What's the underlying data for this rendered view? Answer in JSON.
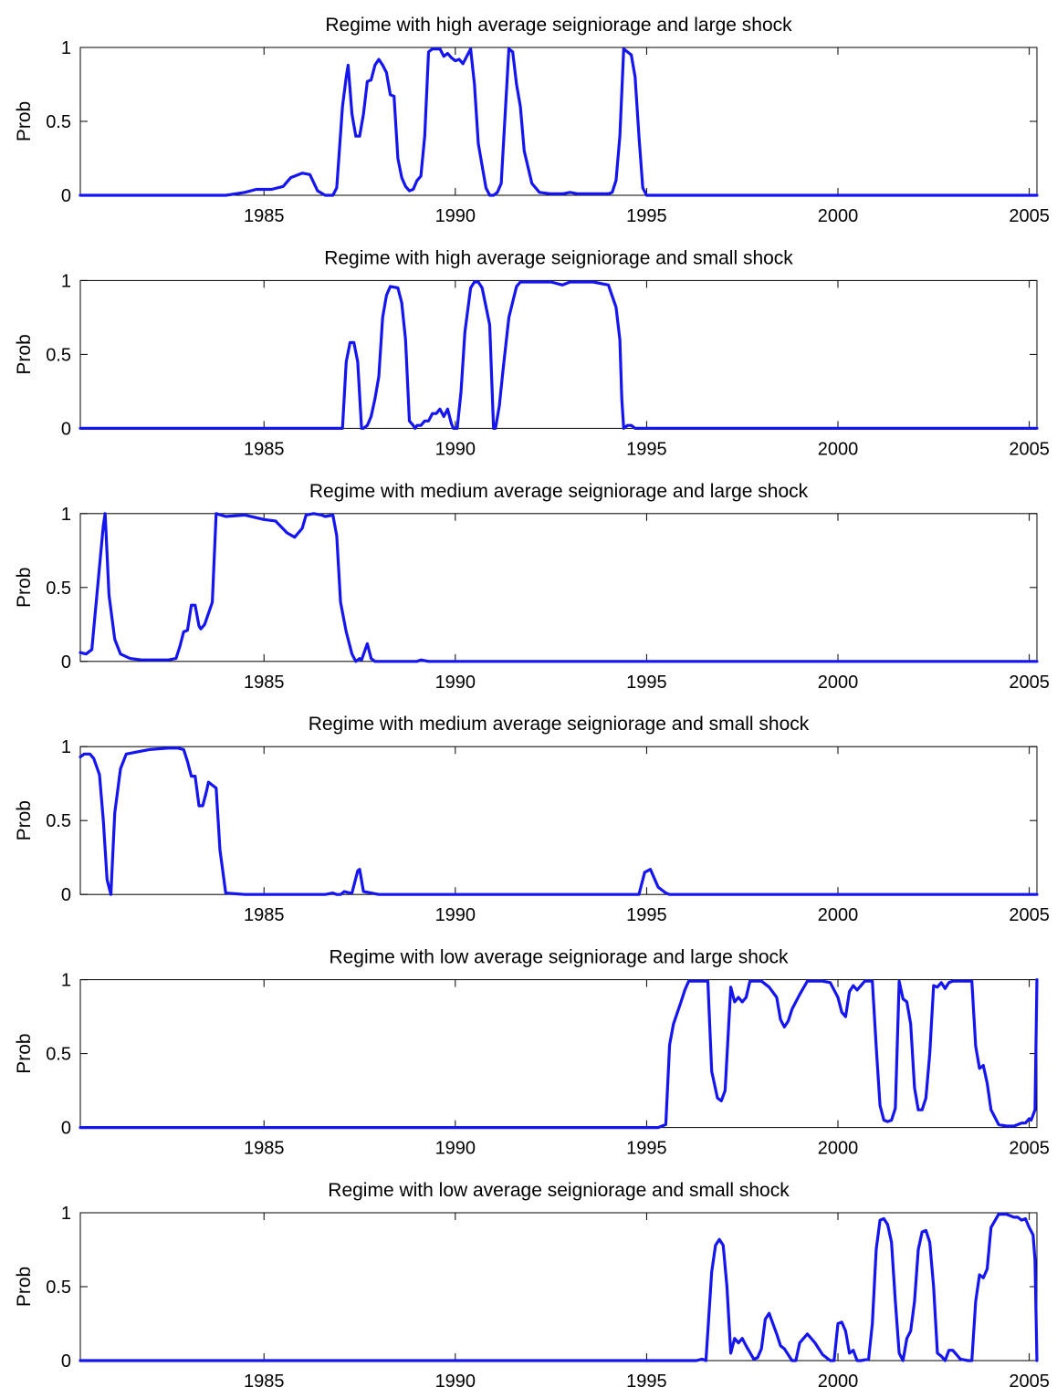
{
  "colors": {
    "line": "#1515f0",
    "axes": "#000000",
    "background": "#ffffff"
  },
  "chart_data": [
    {
      "type": "line",
      "title": "Regime with high average seigniorage and large shock",
      "xlabel": "",
      "ylabel": "Prob",
      "xlim": [
        1980.2,
        2005.2
      ],
      "ylim": [
        0,
        1
      ],
      "xticks": [
        1985,
        1990,
        1995,
        2000,
        2005
      ],
      "yticks": [
        {
          "v": 0,
          "label": "0"
        },
        {
          "v": 0.5,
          "label": "0.5"
        },
        {
          "v": 1,
          "label": "1"
        }
      ],
      "grid": false,
      "series": [
        {
          "x": [
            1980.2,
            1984,
            1984.5,
            1984.8,
            1985.2,
            1985.5,
            1985.7,
            1986,
            1986.2,
            1986.4,
            1986.6,
            1986.8,
            1986.9,
            1987.05,
            1987.15,
            1987.2,
            1987.3,
            1987.4,
            1987.5,
            1987.6,
            1987.7,
            1987.8,
            1987.9,
            1988.0,
            1988.1,
            1988.2,
            1988.3,
            1988.4,
            1988.5,
            1988.6,
            1988.7,
            1988.8,
            1988.9,
            1989.0,
            1989.1,
            1989.2,
            1989.3,
            1989.4,
            1989.5,
            1989.6,
            1989.7,
            1989.8,
            1989.9,
            1990.0,
            1990.1,
            1990.2,
            1990.3,
            1990.4,
            1990.5,
            1990.6,
            1990.7,
            1990.8,
            1990.9,
            1991.0,
            1991.1,
            1991.2,
            1991.4,
            1991.5,
            1991.6,
            1991.7,
            1991.8,
            1992.0,
            1992.2,
            1992.5,
            1992.8,
            1993.0,
            1993.2,
            1993.5,
            1993.8,
            1994.0,
            1994.1,
            1994.2,
            1994.3,
            1994.4,
            1994.6,
            1994.7,
            1994.8,
            1994.9,
            1995.0,
            1995.2,
            2005.2
          ],
          "y": [
            0,
            0,
            0.02,
            0.04,
            0.04,
            0.06,
            0.12,
            0.15,
            0.14,
            0.03,
            0,
            0,
            0.05,
            0.6,
            0.8,
            0.88,
            0.55,
            0.4,
            0.4,
            0.55,
            0.77,
            0.78,
            0.88,
            0.92,
            0.88,
            0.83,
            0.68,
            0.67,
            0.25,
            0.12,
            0.06,
            0.03,
            0.04,
            0.1,
            0.13,
            0.4,
            0.97,
            0.99,
            0.99,
            0.99,
            0.94,
            0.96,
            0.93,
            0.91,
            0.92,
            0.89,
            0.94,
            0.99,
            0.75,
            0.35,
            0.2,
            0.05,
            0,
            0,
            0.02,
            0.08,
            0.99,
            0.97,
            0.75,
            0.6,
            0.3,
            0.08,
            0.02,
            0.01,
            0.01,
            0.02,
            0.01,
            0.01,
            0.01,
            0.01,
            0.02,
            0.1,
            0.4,
            0.99,
            0.95,
            0.8,
            0.4,
            0.05,
            0,
            0,
            0
          ]
        }
      ]
    },
    {
      "type": "line",
      "title": "Regime with high average seigniorage and small shock",
      "xlabel": "",
      "ylabel": "Prob",
      "xlim": [
        1980.2,
        2005.2
      ],
      "ylim": [
        0,
        1
      ],
      "xticks": [
        1985,
        1990,
        1995,
        2000,
        2005
      ],
      "yticks": [
        {
          "v": 0,
          "label": "0"
        },
        {
          "v": 0.5,
          "label": "0.5"
        },
        {
          "v": 1,
          "label": "1"
        }
      ],
      "grid": false,
      "series": [
        {
          "x": [
            1980.2,
            1987.0,
            1987.05,
            1987.15,
            1987.25,
            1987.35,
            1987.45,
            1987.55,
            1987.6,
            1987.7,
            1987.8,
            1987.9,
            1988.0,
            1988.1,
            1988.2,
            1988.3,
            1988.5,
            1988.6,
            1988.7,
            1988.8,
            1988.9,
            1988.95,
            1989.0,
            1989.1,
            1989.2,
            1989.3,
            1989.4,
            1989.5,
            1989.6,
            1989.7,
            1989.8,
            1989.9,
            1989.95,
            1990.05,
            1990.15,
            1990.25,
            1990.4,
            1990.5,
            1990.6,
            1990.7,
            1990.9,
            1991.0,
            1991.05,
            1991.15,
            1991.25,
            1991.4,
            1991.6,
            1991.7,
            1991.8,
            1992.0,
            1992.3,
            1992.5,
            1992.8,
            1993.0,
            1993.3,
            1993.6,
            1994.0,
            1994.2,
            1994.3,
            1994.35,
            1994.4,
            1994.5,
            1994.6,
            1994.7,
            1994.8,
            2005.2
          ],
          "y": [
            0,
            0,
            0,
            0.45,
            0.58,
            0.58,
            0.45,
            0,
            0,
            0.02,
            0.08,
            0.2,
            0.35,
            0.75,
            0.9,
            0.96,
            0.95,
            0.85,
            0.6,
            0.05,
            0.02,
            0,
            0.02,
            0.02,
            0.05,
            0.05,
            0.1,
            0.1,
            0.13,
            0.08,
            0.13,
            0.03,
            0,
            0,
            0.25,
            0.65,
            0.95,
            0.99,
            0.99,
            0.95,
            0.7,
            0,
            0,
            0.15,
            0.4,
            0.75,
            0.96,
            0.99,
            0.99,
            0.99,
            0.99,
            0.99,
            0.97,
            0.99,
            0.99,
            0.99,
            0.97,
            0.82,
            0.6,
            0.2,
            0,
            0.02,
            0.02,
            0,
            0,
            0
          ]
        }
      ]
    },
    {
      "type": "line",
      "title": "Regime with medium average seigniorage and large shock",
      "xlabel": "",
      "ylabel": "Prob",
      "xlim": [
        1980.2,
        2005.2
      ],
      "ylim": [
        0,
        1
      ],
      "xticks": [
        1985,
        1990,
        1995,
        2000,
        2005
      ],
      "yticks": [
        {
          "v": 0,
          "label": "0"
        },
        {
          "v": 0.5,
          "label": "0.5"
        },
        {
          "v": 1,
          "label": "1"
        }
      ],
      "grid": false,
      "series": [
        {
          "x": [
            1980.2,
            1980.35,
            1980.5,
            1980.65,
            1980.8,
            1980.85,
            1980.95,
            1981.1,
            1981.25,
            1981.5,
            1981.8,
            1982.2,
            1982.5,
            1982.7,
            1982.8,
            1982.9,
            1983.0,
            1983.1,
            1983.2,
            1983.3,
            1983.35,
            1983.45,
            1983.65,
            1983.75,
            1984.0,
            1984.5,
            1985.0,
            1985.3,
            1985.6,
            1985.8,
            1986.0,
            1986.1,
            1986.3,
            1986.5,
            1986.6,
            1986.8,
            1986.9,
            1987.0,
            1987.15,
            1987.3,
            1987.4,
            1987.5,
            1987.55,
            1987.7,
            1987.8,
            1987.9,
            1988.0,
            1988.5,
            1989.0,
            1989.1,
            1989.3,
            1989.5,
            2005.2
          ],
          "y": [
            0.06,
            0.05,
            0.08,
            0.5,
            0.92,
            1.0,
            0.45,
            0.15,
            0.05,
            0.02,
            0.01,
            0.01,
            0.01,
            0.02,
            0.1,
            0.2,
            0.21,
            0.38,
            0.38,
            0.24,
            0.22,
            0.25,
            0.4,
            1.0,
            0.98,
            0.99,
            0.96,
            0.95,
            0.87,
            0.84,
            0.9,
            0.99,
            1.0,
            0.99,
            0.98,
            0.99,
            0.85,
            0.4,
            0.2,
            0.05,
            0,
            0.02,
            0.01,
            0.12,
            0.02,
            0,
            0,
            0,
            0,
            0.01,
            0,
            0,
            0
          ]
        }
      ]
    },
    {
      "type": "line",
      "title": "Regime with medium average seigniorage and small shock",
      "xlabel": "",
      "ylabel": "Prob",
      "xlim": [
        1980.2,
        2005.2
      ],
      "ylim": [
        0,
        1
      ],
      "xticks": [
        1985,
        1990,
        1995,
        2000,
        2005
      ],
      "yticks": [
        {
          "v": 0,
          "label": "0"
        },
        {
          "v": 0.5,
          "label": "0.5"
        },
        {
          "v": 1,
          "label": "1"
        }
      ],
      "grid": false,
      "series": [
        {
          "x": [
            1980.2,
            1980.3,
            1980.45,
            1980.55,
            1980.7,
            1980.8,
            1980.9,
            1981.0,
            1981.1,
            1981.25,
            1981.4,
            1981.6,
            1982.0,
            1982.5,
            1982.75,
            1982.9,
            1983.0,
            1983.1,
            1983.2,
            1983.3,
            1983.4,
            1983.5,
            1983.55,
            1983.75,
            1983.85,
            1984.0,
            1984.5,
            1985.0,
            1985.2,
            1985.5,
            1986.0,
            1986.5,
            1986.6,
            1986.8,
            1986.9,
            1987.0,
            1987.1,
            1987.25,
            1987.3,
            1987.45,
            1987.5,
            1987.6,
            1988.0,
            1989.0,
            1990.0,
            1991.0,
            1992.0,
            1994.0,
            1994.5,
            1994.8,
            1994.95,
            1995.1,
            1995.3,
            1995.5,
            1995.6,
            2005.2
          ],
          "y": [
            0.93,
            0.95,
            0.95,
            0.92,
            0.81,
            0.5,
            0.1,
            0,
            0.55,
            0.85,
            0.95,
            0.96,
            0.98,
            0.99,
            0.99,
            0.98,
            0.9,
            0.8,
            0.8,
            0.6,
            0.6,
            0.7,
            0.76,
            0.72,
            0.3,
            0.01,
            0,
            0,
            0,
            0,
            0,
            0,
            0,
            0.01,
            0,
            0,
            0.02,
            0.01,
            0.01,
            0.16,
            0.17,
            0.02,
            0,
            0,
            0,
            0,
            0,
            0,
            0,
            0,
            0.15,
            0.17,
            0.05,
            0.01,
            0,
            0
          ]
        }
      ]
    },
    {
      "type": "line",
      "title": "Regime with low average seigniorage and large shock",
      "xlabel": "",
      "ylabel": "Prob",
      "xlim": [
        1980.2,
        2005.2
      ],
      "ylim": [
        0,
        1
      ],
      "xticks": [
        1985,
        1990,
        1995,
        2000,
        2005
      ],
      "yticks": [
        {
          "v": 0,
          "label": "0"
        },
        {
          "v": 0.5,
          "label": "0.5"
        },
        {
          "v": 1,
          "label": "1"
        }
      ],
      "grid": false,
      "series": [
        {
          "x": [
            1980.2,
            1995.3,
            1995.5,
            1995.6,
            1995.7,
            1995.9,
            1996.0,
            1996.1,
            1996.3,
            1996.5,
            1996.6,
            1996.7,
            1996.85,
            1996.95,
            1997.05,
            1997.2,
            1997.3,
            1997.4,
            1997.5,
            1997.6,
            1997.7,
            1997.8,
            1997.9,
            1998.0,
            1998.2,
            1998.4,
            1998.5,
            1998.6,
            1998.7,
            1998.8,
            1998.9,
            1999.0,
            1999.2,
            1999.4,
            1999.6,
            1999.8,
            2000.0,
            2000.1,
            2000.2,
            2000.3,
            2000.4,
            2000.5,
            2000.7,
            2000.8,
            2000.9,
            2001.0,
            2001.1,
            2001.2,
            2001.3,
            2001.4,
            2001.5,
            2001.6,
            2001.7,
            2001.8,
            2001.9,
            2002.0,
            2002.1,
            2002.2,
            2002.3,
            2002.4,
            2002.5,
            2002.6,
            2002.7,
            2002.8,
            2002.9,
            2003.0,
            2003.2,
            2003.4,
            2003.5,
            2003.6,
            2003.7,
            2003.8,
            2003.9,
            2004.0,
            2004.2,
            2004.4,
            2004.6,
            2004.8,
            2004.9,
            2005.0,
            2005.05,
            2005.15,
            2005.2
          ],
          "y": [
            0,
            0,
            0.02,
            0.56,
            0.7,
            0.85,
            0.93,
            0.99,
            0.99,
            0.99,
            0.99,
            0.38,
            0.2,
            0.18,
            0.25,
            0.95,
            0.85,
            0.88,
            0.85,
            0.88,
            0.99,
            0.99,
            0.99,
            0.99,
            0.95,
            0.88,
            0.73,
            0.68,
            0.72,
            0.8,
            0.85,
            0.9,
            0.99,
            0.99,
            0.99,
            0.98,
            0.88,
            0.78,
            0.75,
            0.92,
            0.96,
            0.93,
            0.99,
            0.99,
            0.99,
            0.55,
            0.15,
            0.05,
            0.04,
            0.05,
            0.13,
            0.99,
            0.87,
            0.85,
            0.7,
            0.27,
            0.12,
            0.12,
            0.2,
            0.5,
            0.96,
            0.95,
            0.98,
            0.94,
            0.98,
            0.99,
            0.99,
            0.99,
            0.99,
            0.55,
            0.4,
            0.42,
            0.3,
            0.12,
            0.02,
            0.01,
            0.01,
            0.03,
            0.03,
            0.06,
            0.05,
            0.12,
            1.0
          ]
        }
      ]
    },
    {
      "type": "line",
      "title": "Regime with low average seigniorage and small shock",
      "xlabel": "",
      "ylabel": "Prob",
      "xlim": [
        1980.2,
        2005.2
      ],
      "ylim": [
        0,
        1
      ],
      "xticks": [
        1985,
        1990,
        1995,
        2000,
        2005
      ],
      "yticks": [
        {
          "v": 0,
          "label": "0"
        },
        {
          "v": 0.5,
          "label": "0.5"
        },
        {
          "v": 1,
          "label": "1"
        }
      ],
      "grid": false,
      "series": [
        {
          "x": [
            1980.2,
            1996.0,
            1996.3,
            1996.45,
            1996.55,
            1996.7,
            1996.8,
            1996.9,
            1997.0,
            1997.1,
            1997.2,
            1997.3,
            1997.4,
            1997.5,
            1997.6,
            1997.8,
            1997.9,
            1998.0,
            1998.1,
            1998.2,
            1998.4,
            1998.5,
            1998.6,
            1998.7,
            1998.8,
            1998.9,
            1999.0,
            1999.2,
            1999.4,
            1999.6,
            1999.8,
            1999.9,
            2000.0,
            2000.1,
            2000.2,
            2000.3,
            2000.4,
            2000.5,
            2000.6,
            2000.8,
            2000.9,
            2001.0,
            2001.1,
            2001.2,
            2001.3,
            2001.4,
            2001.5,
            2001.6,
            2001.7,
            2001.8,
            2001.9,
            2002.0,
            2002.1,
            2002.2,
            2002.3,
            2002.4,
            2002.5,
            2002.6,
            2002.7,
            2002.8,
            2002.9,
            2003.0,
            2003.2,
            2003.4,
            2003.5,
            2003.6,
            2003.7,
            2003.8,
            2003.9,
            2004.0,
            2004.2,
            2004.4,
            2004.6,
            2004.7,
            2004.8,
            2004.9,
            2005.0,
            2005.1,
            2005.15,
            2005.2
          ],
          "y": [
            0,
            0,
            0,
            0.01,
            0,
            0.6,
            0.78,
            0.82,
            0.78,
            0.5,
            0.05,
            0.15,
            0.12,
            0.15,
            0.1,
            0.01,
            0.02,
            0.08,
            0.28,
            0.32,
            0.18,
            0.1,
            0.08,
            0.04,
            0,
            0,
            0.12,
            0.18,
            0.12,
            0.04,
            0,
            0,
            0.25,
            0.26,
            0.2,
            0.05,
            0.07,
            0,
            0,
            0.01,
            0.25,
            0.75,
            0.95,
            0.96,
            0.92,
            0.8,
            0.4,
            0.05,
            0,
            0.15,
            0.2,
            0.4,
            0.75,
            0.87,
            0.88,
            0.8,
            0.5,
            0.05,
            0.03,
            0,
            0.07,
            0.07,
            0.01,
            0,
            0,
            0.4,
            0.58,
            0.56,
            0.62,
            0.9,
            0.99,
            0.99,
            0.97,
            0.97,
            0.95,
            0.96,
            0.9,
            0.85,
            0.68,
            0
          ]
        }
      ]
    }
  ]
}
